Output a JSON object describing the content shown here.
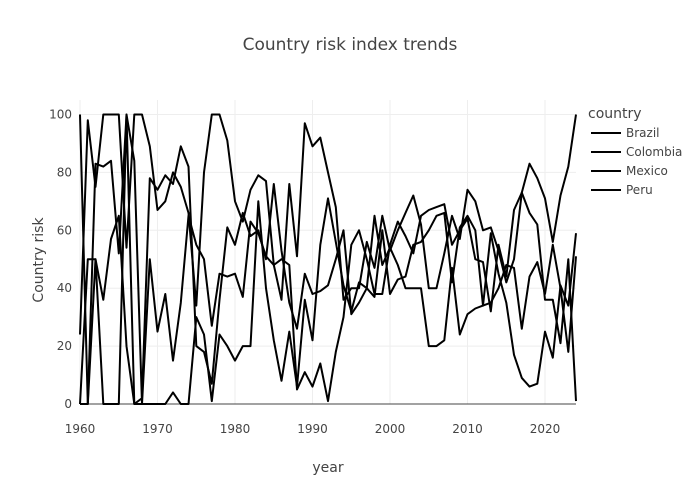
{
  "chart_data": {
    "type": "line",
    "title": "Country risk index trends",
    "xlabel": "year",
    "ylabel": "Country risk",
    "xlim": [
      1960,
      2024
    ],
    "ylim": [
      0,
      105
    ],
    "x_ticks": [
      1960,
      1970,
      1980,
      1990,
      2000,
      2010,
      2020
    ],
    "y_ticks": [
      0,
      20,
      40,
      60,
      80,
      100
    ],
    "grid": true,
    "legend": {
      "title": "country",
      "placement": "right"
    },
    "colors": {
      "line": "#000000",
      "grid": "#eeeeee",
      "text": "#444444"
    },
    "series": [
      {
        "name": "Brazil",
        "x": [
          1960,
          1961,
          1962,
          1963,
          1964,
          1965,
          1966,
          1967,
          1968,
          1969,
          1970,
          1971,
          1972,
          1973,
          1974,
          1975,
          1976,
          1977,
          1978,
          1979,
          1980,
          1981,
          1982,
          1983,
          1984,
          1985,
          1986,
          1987,
          1988,
          1989,
          1990,
          1991,
          1992,
          1993,
          1994,
          1995,
          1996,
          1997,
          1998,
          1999,
          2000,
          2001,
          2002,
          2003,
          2004,
          2005,
          2006,
          2007,
          2008,
          2009,
          2010,
          2011,
          2012,
          2013,
          2014,
          2015,
          2016,
          2017,
          2018,
          2019,
          2020,
          2021,
          2022,
          2023,
          2024
        ],
        "values": [
          24,
          98,
          75,
          100,
          100,
          100,
          54,
          100,
          100,
          89,
          67,
          70,
          80,
          75,
          66,
          34,
          80,
          100,
          100,
          91,
          70,
          63,
          74,
          79,
          77,
          48,
          36,
          76,
          51,
          97,
          89,
          92,
          80,
          68,
          36,
          40,
          40,
          56,
          47,
          65,
          53,
          60,
          66,
          72,
          62,
          40,
          40,
          52,
          65,
          57,
          74,
          70,
          60,
          61,
          53,
          42,
          50,
          73,
          83,
          78,
          71,
          56,
          72,
          82,
          100
        ]
      },
      {
        "name": "Colombia",
        "x": [
          1960,
          1961,
          1962,
          1963,
          1964,
          1965,
          1966,
          1967,
          1968,
          1969,
          1970,
          1971,
          1972,
          1973,
          1974,
          1975,
          1976,
          1977,
          1978,
          1979,
          1980,
          1981,
          1982,
          1983,
          1984,
          1985,
          1986,
          1987,
          1988,
          1989,
          1990,
          1991,
          1992,
          1993,
          1994,
          1995,
          1996,
          1997,
          1998,
          1999,
          2000,
          2001,
          2002,
          2003,
          2004,
          2005,
          2006,
          2007,
          2008,
          2009,
          2010,
          2011,
          2012,
          2013,
          2014,
          2015,
          2016,
          2017,
          2018,
          2019,
          2020,
          2021,
          2022,
          2023,
          2024
        ],
        "values": [
          0,
          50,
          50,
          36,
          57,
          65,
          20,
          0,
          2,
          78,
          74,
          79,
          76,
          89,
          82,
          20,
          18,
          7,
          36,
          61,
          55,
          66,
          58,
          60,
          50,
          76,
          53,
          35,
          26,
          45,
          38,
          39,
          41,
          50,
          60,
          31,
          35,
          40,
          37,
          60,
          38,
          43,
          44,
          55,
          56,
          60,
          65,
          66,
          42,
          61,
          65,
          60,
          34,
          59,
          45,
          35,
          17,
          9,
          6,
          7,
          25,
          16,
          41,
          34,
          59
        ]
      },
      {
        "name": "Mexico",
        "x": [
          1960,
          1961,
          1962,
          1963,
          1964,
          1965,
          1966,
          1967,
          1968,
          1969,
          1970,
          1971,
          1972,
          1973,
          1974,
          1975,
          1976,
          1977,
          1978,
          1979,
          1980,
          1981,
          1982,
          1983,
          1984,
          1985,
          1986,
          1987,
          1988,
          1989,
          1990,
          1991,
          1992,
          1993,
          1994,
          1995,
          1996,
          1997,
          1998,
          1999,
          2000,
          2001,
          2002,
          2003,
          2004,
          2005,
          2006,
          2007,
          2008,
          2009,
          2010,
          2011,
          2012,
          2013,
          2014,
          2015,
          2016,
          2017,
          2018,
          2019,
          2020,
          2021,
          2022,
          2023,
          2024
        ],
        "values": [
          100,
          0,
          50,
          0,
          0,
          0,
          100,
          0,
          0,
          50,
          25,
          38,
          15,
          35,
          65,
          55,
          50,
          27,
          45,
          44,
          45,
          37,
          63,
          59,
          51,
          48,
          50,
          48,
          5,
          11,
          6,
          14,
          1,
          18,
          30,
          55,
          60,
          50,
          38,
          38,
          55,
          63,
          58,
          52,
          65,
          67,
          68,
          69,
          55,
          60,
          64,
          50,
          49,
          32,
          55,
          44,
          67,
          73,
          66,
          62,
          36,
          36,
          21,
          50,
          1
        ]
      },
      {
        "name": "Peru",
        "x": [
          1960,
          1961,
          1962,
          1963,
          1964,
          1965,
          1966,
          1967,
          1968,
          1969,
          1970,
          1971,
          1972,
          1973,
          1974,
          1975,
          1976,
          1977,
          1978,
          1979,
          1980,
          1981,
          1982,
          1983,
          1984,
          1985,
          1986,
          1987,
          1988,
          1989,
          1990,
          1991,
          1992,
          1993,
          1994,
          1995,
          1996,
          1997,
          1998,
          1999,
          2000,
          2001,
          2002,
          2003,
          2004,
          2005,
          2006,
          2007,
          2008,
          2009,
          2010,
          2011,
          2012,
          2013,
          2014,
          2015,
          2016,
          2017,
          2018,
          2019,
          2020,
          2021,
          2022,
          2023,
          2024
        ],
        "values": [
          0,
          0,
          83,
          82,
          84,
          52,
          100,
          84,
          0,
          0,
          0,
          0,
          4,
          0,
          0,
          30,
          24,
          1,
          24,
          20,
          15,
          20,
          20,
          70,
          40,
          22,
          8,
          25,
          6,
          36,
          22,
          55,
          71,
          56,
          41,
          32,
          42,
          40,
          65,
          48,
          54,
          48,
          40,
          40,
          40,
          20,
          20,
          22,
          47,
          24,
          31,
          33,
          34,
          35,
          40,
          48,
          47,
          26,
          44,
          49,
          38,
          55,
          40,
          18,
          51
        ]
      }
    ]
  }
}
